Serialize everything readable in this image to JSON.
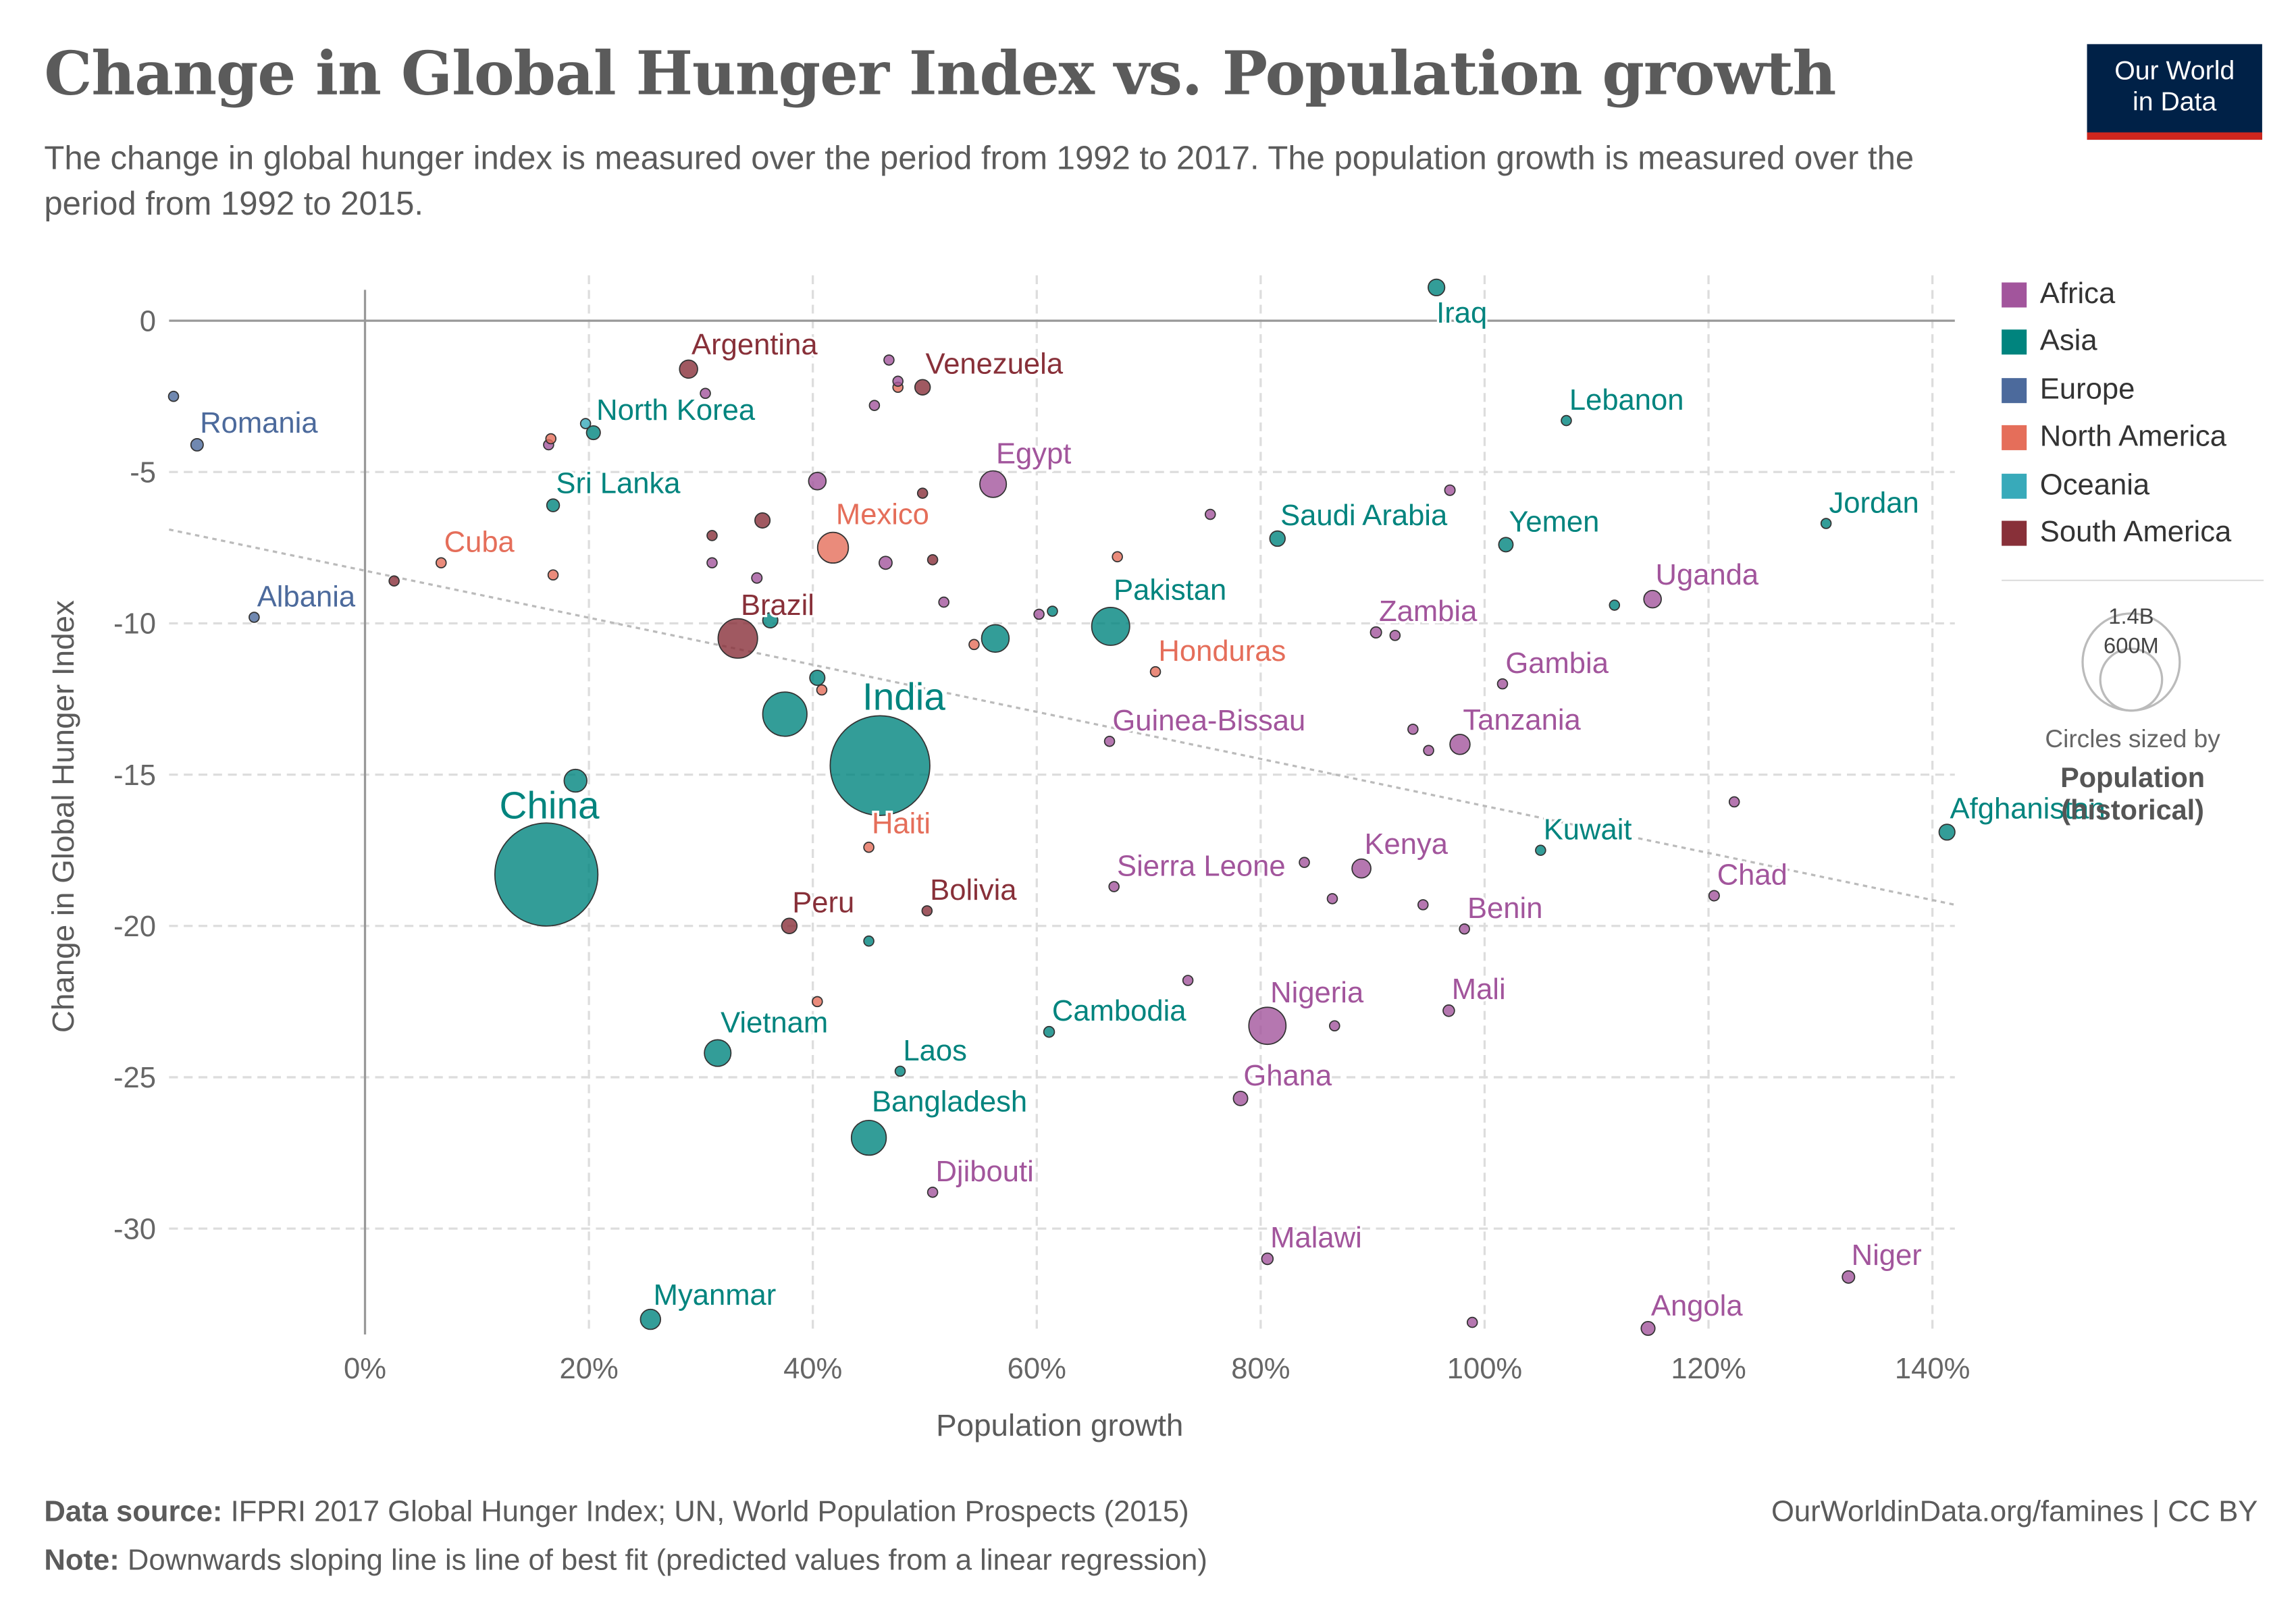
{
  "header": {
    "title": "Change in Global Hunger Index vs. Population growth",
    "subtitle": "The change in global hunger index is measured over the period from 1992 to 2017. The population growth is measured over the period from 1992 to 2015.",
    "logo_line1": "Our World",
    "logo_line2": "in Data"
  },
  "legend": {
    "regions": [
      {
        "name": "Africa",
        "color": "#A2559C"
      },
      {
        "name": "Asia",
        "color": "#00847E"
      },
      {
        "name": "Europe",
        "color": "#4C6A9C"
      },
      {
        "name": "North America",
        "color": "#E56E5A"
      },
      {
        "name": "Oceania",
        "color": "#38AABA"
      },
      {
        "name": "South America",
        "color": "#883039"
      }
    ],
    "size_big": "1.4B",
    "size_small": "600M",
    "size_caption": "Circles sized by",
    "size_var1": "Population",
    "size_var2": "(historical)"
  },
  "footer": {
    "source_label": "Data source:",
    "source": "IFPRI 2017 Global Hunger Index; UN, World Population Prospects (2015)",
    "note_label": "Note:",
    "note": "Downwards sloping line is line of best fit (predicted values from a linear regression)",
    "credit": "OurWorldinData.org/famines | CC BY"
  },
  "chart_data": {
    "type": "scatter",
    "title": "Change in Global Hunger Index vs. Population growth",
    "xlabel": "Population growth",
    "ylabel": "Change in Global Hunger Index",
    "xlim": [
      -17.5,
      142
    ],
    "ylim": [
      -33.5,
      1.5
    ],
    "xticks": [
      0,
      20,
      40,
      60,
      80,
      100,
      120,
      140
    ],
    "xtick_labels": [
      "0%",
      "20%",
      "40%",
      "60%",
      "80%",
      "100%",
      "120%",
      "140%"
    ],
    "yticks": [
      0,
      -5,
      -10,
      -15,
      -20,
      -25,
      -30
    ],
    "ytick_labels": [
      "0",
      "-5",
      "-10",
      "-15",
      "-20",
      "-25",
      "-30"
    ],
    "grid": true,
    "legend_position": "right",
    "size_variable": "Population (millions)",
    "trendline": {
      "x": [
        -17.5,
        142
      ],
      "y": [
        -6.9,
        -19.3
      ]
    },
    "points": [
      {
        "label": "Argentina",
        "region": "South America",
        "x": 28.9,
        "y": -1.6,
        "pop": 43
      },
      {
        "label": "Venezuela",
        "region": "South America",
        "x": 49.8,
        "y": -2.2,
        "pop": 31
      },
      {
        "label": "North Korea",
        "region": "Asia",
        "x": 20.4,
        "y": -3.7,
        "pop": 25
      },
      {
        "label": "Romania",
        "region": "Europe",
        "x": -15.0,
        "y": -4.1,
        "pop": 20
      },
      {
        "label": "Sri Lanka",
        "region": "Asia",
        "x": 16.8,
        "y": -6.1,
        "pop": 21
      },
      {
        "label": "Egypt",
        "region": "Africa",
        "x": 56.1,
        "y": -5.4,
        "pop": 93
      },
      {
        "label": "Mexico",
        "region": "North America",
        "x": 41.8,
        "y": -7.5,
        "pop": 125
      },
      {
        "label": "Cuba",
        "region": "North America",
        "x": 6.8,
        "y": -8.0,
        "pop": 11
      },
      {
        "label": "Albania",
        "region": "Europe",
        "x": -9.9,
        "y": -9.8,
        "pop": 3
      },
      {
        "label": "Brazil",
        "region": "South America",
        "x": 33.3,
        "y": -10.5,
        "pop": 205
      },
      {
        "label": "Pakistan",
        "region": "Asia",
        "x": 66.6,
        "y": -10.1,
        "pop": 190
      },
      {
        "label": "Honduras",
        "region": "North America",
        "x": 70.6,
        "y": -11.6,
        "pop": 9
      },
      {
        "label": "India",
        "region": "Asia",
        "x": 46.0,
        "y": -14.7,
        "pop": 1310
      },
      {
        "label": "China",
        "region": "Asia",
        "x": 16.2,
        "y": -18.3,
        "pop": 1400
      },
      {
        "label": "Haiti",
        "region": "North America",
        "x": 45.0,
        "y": -17.4,
        "pop": 11
      },
      {
        "label": "Peru",
        "region": "South America",
        "x": 37.9,
        "y": -20.0,
        "pop": 31
      },
      {
        "label": "Bolivia",
        "region": "South America",
        "x": 50.2,
        "y": -19.5,
        "pop": 11
      },
      {
        "label": "Vietnam",
        "region": "Asia",
        "x": 31.5,
        "y": -24.2,
        "pop": 93
      },
      {
        "label": "Laos",
        "region": "Asia",
        "x": 47.8,
        "y": -24.8,
        "pop": 7
      },
      {
        "label": "Cambodia",
        "region": "Asia",
        "x": 61.1,
        "y": -23.5,
        "pop": 15
      },
      {
        "label": "Bangladesh",
        "region": "Asia",
        "x": 45.0,
        "y": -27.0,
        "pop": 160
      },
      {
        "label": "Djibouti",
        "region": "Africa",
        "x": 50.7,
        "y": -28.8,
        "pop": 1
      },
      {
        "label": "Myanmar",
        "region": "Asia",
        "x": 25.5,
        "y": -33.0,
        "pop": 53
      },
      {
        "label": "Iraq",
        "region": "Asia",
        "x": 95.7,
        "y": 1.1,
        "pop": 36
      },
      {
        "label": "Lebanon",
        "region": "Asia",
        "x": 107.3,
        "y": -3.3,
        "pop": 6
      },
      {
        "label": "Saudi Arabia",
        "region": "Asia",
        "x": 81.5,
        "y": -7.2,
        "pop": 31
      },
      {
        "label": "Yemen",
        "region": "Asia",
        "x": 101.9,
        "y": -7.4,
        "pop": 27
      },
      {
        "label": "Jordan",
        "region": "Asia",
        "x": 130.5,
        "y": -6.7,
        "pop": 9
      },
      {
        "label": "Uganda",
        "region": "Africa",
        "x": 115.0,
        "y": -9.2,
        "pop": 40
      },
      {
        "label": "Zambia",
        "region": "Africa",
        "x": 90.3,
        "y": -10.3,
        "pop": 16
      },
      {
        "label": "Gambia",
        "region": "Africa",
        "x": 101.6,
        "y": -12.0,
        "pop": 2
      },
      {
        "label": "Tanzania",
        "region": "Africa",
        "x": 97.8,
        "y": -14.0,
        "pop": 53
      },
      {
        "label": "Guinea-Bissau",
        "region": "Africa",
        "x": 66.5,
        "y": -13.9,
        "pop": 2
      },
      {
        "label": "Afghanistan",
        "region": "Asia",
        "x": 141.3,
        "y": -16.9,
        "pop": 33
      },
      {
        "label": "Kuwait",
        "region": "Asia",
        "x": 105.0,
        "y": -17.5,
        "pop": 4
      },
      {
        "label": "Kenya",
        "region": "Africa",
        "x": 89.0,
        "y": -18.1,
        "pop": 47
      },
      {
        "label": "Sierra Leone",
        "region": "Africa",
        "x": 66.9,
        "y": -18.7,
        "pop": 7
      },
      {
        "label": "Chad",
        "region": "Africa",
        "x": 120.5,
        "y": -19.0,
        "pop": 14
      },
      {
        "label": "Benin",
        "region": "Africa",
        "x": 98.2,
        "y": -20.1,
        "pop": 11
      },
      {
        "label": "Mali",
        "region": "Africa",
        "x": 96.8,
        "y": -22.8,
        "pop": 17
      },
      {
        "label": "Nigeria",
        "region": "Africa",
        "x": 80.6,
        "y": -23.3,
        "pop": 182
      },
      {
        "label": "Ghana",
        "region": "Africa",
        "x": 78.2,
        "y": -25.7,
        "pop": 27
      },
      {
        "label": "Malawi",
        "region": "Africa",
        "x": 80.6,
        "y": -31.0,
        "pop": 17
      },
      {
        "label": "Niger",
        "region": "Africa",
        "x": 132.5,
        "y": -31.6,
        "pop": 20
      },
      {
        "label": "Angola",
        "region": "Africa",
        "x": 114.6,
        "y": -33.3,
        "pop": 25
      },
      {
        "label": "",
        "region": "Europe",
        "x": -17.1,
        "y": -2.5,
        "pop": 7
      },
      {
        "label": "",
        "region": "Africa",
        "x": 46.8,
        "y": -1.3,
        "pop": 10
      },
      {
        "label": "",
        "region": "Africa",
        "x": 30.4,
        "y": -2.4,
        "pop": 10
      },
      {
        "label": "",
        "region": "North America",
        "x": 47.6,
        "y": -2.2,
        "pop": 10
      },
      {
        "label": "",
        "region": "Africa",
        "x": 47.6,
        "y": -2.0,
        "pop": 10
      },
      {
        "label": "",
        "region": "Africa",
        "x": 45.5,
        "y": -2.8,
        "pop": 10
      },
      {
        "label": "",
        "region": "Oceania",
        "x": 19.7,
        "y": -3.4,
        "pop": 8
      },
      {
        "label": "",
        "region": "North America",
        "x": 16.6,
        "y": -3.9,
        "pop": 8
      },
      {
        "label": "",
        "region": "Africa",
        "x": 16.4,
        "y": -4.1,
        "pop": 10
      },
      {
        "label": "",
        "region": "Africa",
        "x": 40.4,
        "y": -5.3,
        "pop": 40
      },
      {
        "label": "",
        "region": "South America",
        "x": 49.8,
        "y": -5.7,
        "pop": 6
      },
      {
        "label": "",
        "region": "South America",
        "x": 35.5,
        "y": -6.6,
        "pop": 30
      },
      {
        "label": "",
        "region": "South America",
        "x": 31.0,
        "y": -7.1,
        "pop": 7
      },
      {
        "label": "",
        "region": "North America",
        "x": 16.8,
        "y": -8.4,
        "pop": 8
      },
      {
        "label": "",
        "region": "Africa",
        "x": 31.0,
        "y": -8.0,
        "pop": 7
      },
      {
        "label": "",
        "region": "Africa",
        "x": 35.0,
        "y": -8.5,
        "pop": 14
      },
      {
        "label": "",
        "region": "Africa",
        "x": 46.5,
        "y": -8.0,
        "pop": 22
      },
      {
        "label": "",
        "region": "South America",
        "x": 50.7,
        "y": -7.9,
        "pop": 7
      },
      {
        "label": "",
        "region": "South America",
        "x": 2.6,
        "y": -8.6,
        "pop": 6
      },
      {
        "label": "",
        "region": "Africa",
        "x": 51.7,
        "y": -9.3,
        "pop": 7
      },
      {
        "label": "",
        "region": "Asia",
        "x": 36.2,
        "y": -9.9,
        "pop": 30
      },
      {
        "label": "",
        "region": "Asia",
        "x": 56.3,
        "y": -10.5,
        "pop": 100
      },
      {
        "label": "",
        "region": "North America",
        "x": 54.4,
        "y": -10.7,
        "pop": 6
      },
      {
        "label": "",
        "region": "Africa",
        "x": 60.2,
        "y": -9.7,
        "pop": 6
      },
      {
        "label": "",
        "region": "Asia",
        "x": 61.4,
        "y": -9.6,
        "pop": 10
      },
      {
        "label": "",
        "region": "Asia",
        "x": 40.4,
        "y": -11.8,
        "pop": 30
      },
      {
        "label": "",
        "region": "North America",
        "x": 40.8,
        "y": -12.2,
        "pop": 6
      },
      {
        "label": "",
        "region": "Asia",
        "x": 37.5,
        "y": -13.0,
        "pop": 258
      },
      {
        "label": "",
        "region": "Asia",
        "x": 18.8,
        "y": -15.2,
        "pop": 68
      },
      {
        "label": "",
        "region": "Asia",
        "x": 45.0,
        "y": -20.5,
        "pop": 10
      },
      {
        "label": "",
        "region": "North America",
        "x": 40.4,
        "y": -22.5,
        "pop": 10
      },
      {
        "label": "",
        "region": "North America",
        "x": 67.2,
        "y": -7.8,
        "pop": 7
      },
      {
        "label": "",
        "region": "Africa",
        "x": 75.5,
        "y": -6.4,
        "pop": 12
      },
      {
        "label": "",
        "region": "Africa",
        "x": 96.9,
        "y": -5.6,
        "pop": 14
      },
      {
        "label": "",
        "region": "Asia",
        "x": 111.6,
        "y": -9.4,
        "pop": 5
      },
      {
        "label": "",
        "region": "Africa",
        "x": 92.0,
        "y": -10.4,
        "pop": 10
      },
      {
        "label": "",
        "region": "Africa",
        "x": 93.6,
        "y": -13.5,
        "pop": 10
      },
      {
        "label": "",
        "region": "Africa",
        "x": 95.0,
        "y": -14.2,
        "pop": 10
      },
      {
        "label": "",
        "region": "Africa",
        "x": 122.3,
        "y": -15.9,
        "pop": 8
      },
      {
        "label": "",
        "region": "Africa",
        "x": 83.9,
        "y": -17.9,
        "pop": 10
      },
      {
        "label": "",
        "region": "Africa",
        "x": 86.4,
        "y": -19.1,
        "pop": 10
      },
      {
        "label": "",
        "region": "Africa",
        "x": 94.5,
        "y": -19.3,
        "pop": 10
      },
      {
        "label": "",
        "region": "Africa",
        "x": 73.5,
        "y": -21.8,
        "pop": 10
      },
      {
        "label": "",
        "region": "Africa",
        "x": 86.6,
        "y": -23.3,
        "pop": 10
      },
      {
        "label": "",
        "region": "Africa",
        "x": 98.9,
        "y": -33.1,
        "pop": 10
      }
    ]
  }
}
